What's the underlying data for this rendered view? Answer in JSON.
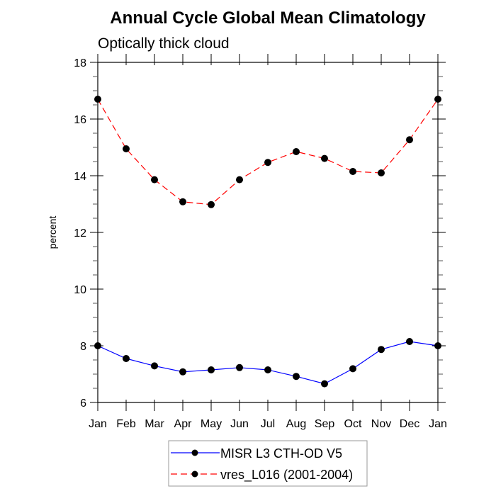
{
  "chart_data": {
    "type": "line",
    "title": "Annual Cycle Global Mean Climatology",
    "subtitle": "Optically thick cloud",
    "xlabel": "",
    "ylabel": "percent",
    "categories": [
      "Jan",
      "Feb",
      "Mar",
      "Apr",
      "May",
      "Jun",
      "Jul",
      "Aug",
      "Sep",
      "Oct",
      "Nov",
      "Dec",
      "Jan"
    ],
    "ylim": [
      6,
      18
    ],
    "yticks": [
      6,
      8,
      10,
      12,
      14,
      16,
      18
    ],
    "y_minor_step": 0.5,
    "grid": false,
    "legend_position": "bottom-center",
    "series": [
      {
        "name": "MISR L3 CTH-OD V5",
        "color": "#0000ff",
        "line_style": "solid",
        "marker": "filled-circle",
        "values": [
          8.0,
          7.55,
          7.29,
          7.08,
          7.15,
          7.23,
          7.15,
          6.92,
          6.66,
          7.19,
          7.87,
          8.15,
          8.0
        ]
      },
      {
        "name": "vres_L016 (2001-2004)",
        "color": "#ff0000",
        "line_style": "dashed",
        "marker": "filled-circle",
        "values": [
          16.7,
          14.95,
          13.86,
          13.08,
          12.98,
          13.86,
          14.47,
          14.85,
          14.61,
          14.15,
          14.1,
          15.27,
          16.7
        ]
      }
    ]
  }
}
